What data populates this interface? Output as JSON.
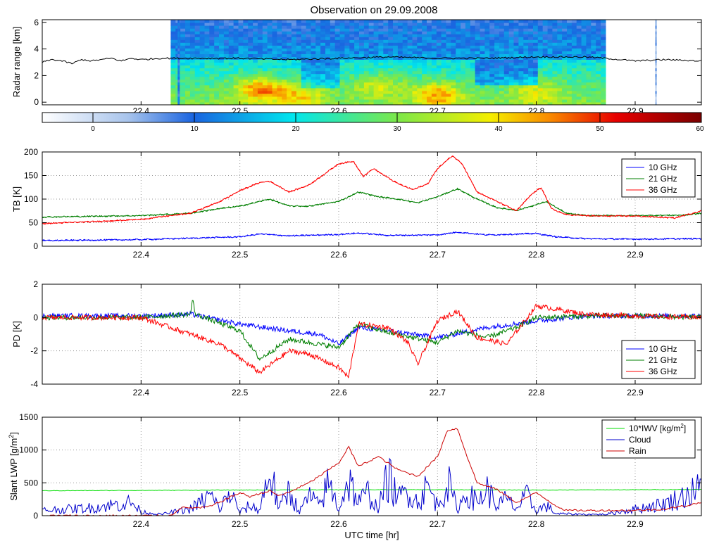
{
  "title": "Observation on 29.09.2008",
  "xlabel": "UTC time [hr]",
  "chart_data": [
    {
      "type": "heatmap",
      "name": "radar",
      "ylabel": "Radar range [km]",
      "xlim": [
        22.3,
        22.967
      ],
      "ylim": [
        -0.2,
        6.2
      ],
      "xticks": [
        22.4,
        22.5,
        22.6,
        22.7,
        22.8,
        22.9
      ],
      "yticks": [
        0,
        2,
        4,
        6
      ],
      "data_x_range": [
        22.43,
        22.87
      ],
      "stray_columns_x": [
        22.437,
        22.92
      ],
      "cloud_base_km": 3.3,
      "colorbar": {
        "min": -5,
        "max": 60,
        "ticks": [
          0,
          10,
          20,
          30,
          40,
          50,
          60
        ]
      },
      "cloud_base_line": {
        "x": [
          22.3,
          22.31,
          22.32,
          22.33,
          22.34,
          22.35,
          22.36,
          22.37,
          22.38,
          22.39,
          22.4,
          22.42,
          22.45,
          22.5,
          22.55,
          22.6,
          22.65,
          22.7,
          22.75,
          22.8,
          22.85,
          22.87,
          22.9,
          22.93,
          22.967
        ],
        "y": [
          3.0,
          3.2,
          3.1,
          2.9,
          3.2,
          3.1,
          3.2,
          3.3,
          3.1,
          3.3,
          3.2,
          3.3,
          3.3,
          3.3,
          3.2,
          3.3,
          3.4,
          3.3,
          3.3,
          3.4,
          3.4,
          3.3,
          3.1,
          3.2,
          3.1
        ]
      }
    },
    {
      "type": "line",
      "name": "tb",
      "ylabel": "TB [K]",
      "xlim": [
        22.3,
        22.967
      ],
      "ylim": [
        0,
        200
      ],
      "xticks": [
        22.4,
        22.5,
        22.6,
        22.7,
        22.8,
        22.9
      ],
      "yticks": [
        0,
        50,
        100,
        150,
        200
      ],
      "grid": true,
      "legend": "top-right",
      "series": [
        {
          "name": "10 GHz",
          "color": "#0000ff",
          "x": [
            22.3,
            22.4,
            22.45,
            22.5,
            22.52,
            22.55,
            22.6,
            22.62,
            22.65,
            22.7,
            22.72,
            22.75,
            22.8,
            22.82,
            22.85,
            22.9,
            22.967
          ],
          "y": [
            12,
            14,
            17,
            20,
            26,
            22,
            25,
            28,
            23,
            24,
            30,
            24,
            27,
            20,
            16,
            15,
            16
          ]
        },
        {
          "name": "21 GHz",
          "color": "#007f00",
          "x": [
            22.3,
            22.4,
            22.45,
            22.48,
            22.5,
            22.53,
            22.55,
            22.57,
            22.6,
            22.62,
            22.64,
            22.66,
            22.68,
            22.7,
            22.72,
            22.74,
            22.76,
            22.78,
            22.8,
            22.81,
            22.83,
            22.85,
            22.9,
            22.95,
            22.967
          ],
          "y": [
            62,
            65,
            70,
            80,
            85,
            100,
            85,
            85,
            95,
            115,
            105,
            100,
            92,
            105,
            122,
            100,
            82,
            76,
            88,
            95,
            70,
            65,
            65,
            66,
            70
          ]
        },
        {
          "name": "36 GHz",
          "color": "#ff0000",
          "x": [
            22.3,
            22.35,
            22.4,
            22.45,
            22.48,
            22.5,
            22.52,
            22.53,
            22.55,
            22.57,
            22.6,
            22.615,
            22.625,
            22.635,
            22.65,
            22.66,
            22.675,
            22.69,
            22.7,
            22.715,
            22.725,
            22.74,
            22.76,
            22.78,
            22.795,
            22.805,
            22.815,
            22.83,
            22.86,
            22.9,
            22.94,
            22.967
          ],
          "y": [
            48,
            52,
            57,
            70,
            95,
            118,
            135,
            138,
            115,
            130,
            175,
            180,
            148,
            165,
            145,
            133,
            120,
            132,
            165,
            192,
            175,
            115,
            95,
            75,
            110,
            125,
            80,
            67,
            64,
            64,
            60,
            75
          ]
        }
      ]
    },
    {
      "type": "line",
      "name": "pd",
      "ylabel": "PD [K]",
      "xlim": [
        22.3,
        22.967
      ],
      "ylim": [
        -4,
        2
      ],
      "xticks": [
        22.4,
        22.5,
        22.6,
        22.7,
        22.8,
        22.9
      ],
      "yticks": [
        -4,
        -2,
        0,
        2
      ],
      "grid": true,
      "legend": "bottom-right",
      "series": [
        {
          "name": "10 GHz",
          "color": "#0000ff",
          "x": [
            22.3,
            22.4,
            22.45,
            22.5,
            22.55,
            22.58,
            22.6,
            22.62,
            22.65,
            22.7,
            22.75,
            22.8,
            22.85,
            22.9,
            22.967
          ],
          "y": [
            0.1,
            0.1,
            0.2,
            -0.4,
            -0.8,
            -1.0,
            -1.6,
            -0.6,
            -0.8,
            -1.2,
            -0.6,
            -0.2,
            0.1,
            0.1,
            0.1
          ]
        },
        {
          "name": "21 GHz",
          "color": "#007f00",
          "x": [
            22.3,
            22.4,
            22.45,
            22.452,
            22.455,
            22.5,
            22.52,
            22.55,
            22.6,
            22.62,
            22.65,
            22.7,
            22.72,
            22.75,
            22.78,
            22.8,
            22.85,
            22.9,
            22.967
          ],
          "y": [
            0.0,
            0.0,
            0.2,
            1.1,
            0.2,
            -0.8,
            -2.5,
            -1.3,
            -1.8,
            -0.4,
            -0.9,
            -1.5,
            -0.8,
            -1.2,
            -0.6,
            0.0,
            0.1,
            0.1,
            0.0
          ]
        },
        {
          "name": "36 GHz",
          "color": "#ff0000",
          "x": [
            22.3,
            22.4,
            22.43,
            22.48,
            22.52,
            22.55,
            22.57,
            22.6,
            22.61,
            22.62,
            22.65,
            22.67,
            22.68,
            22.7,
            22.72,
            22.74,
            22.77,
            22.8,
            22.82,
            22.85,
            22.9,
            22.967
          ],
          "y": [
            0.0,
            0.0,
            -0.6,
            -1.6,
            -3.3,
            -2.0,
            -2.2,
            -3.0,
            -3.6,
            -0.4,
            -0.6,
            -1.5,
            -2.8,
            -0.2,
            0.4,
            -1.2,
            -1.6,
            0.7,
            0.5,
            0.2,
            0.1,
            0.0
          ]
        }
      ]
    },
    {
      "type": "line",
      "name": "lwp",
      "ylabel": "Slant LWP [g/m",
      "ylabel_sup": "2",
      "ylabel_end": "]",
      "xlim": [
        22.3,
        22.967
      ],
      "ylim": [
        0,
        1500
      ],
      "xticks": [
        22.4,
        22.5,
        22.6,
        22.7,
        22.8,
        22.9
      ],
      "yticks": [
        0,
        500,
        1000,
        1500
      ],
      "grid": true,
      "legend": "top-right",
      "series": [
        {
          "name": "10*IWV [kg/m",
          "name_sup": "2",
          "name_end": "]",
          "color": "#00dd00",
          "x": [
            22.3,
            22.4,
            22.5,
            22.6,
            22.7,
            22.8,
            22.9,
            22.967
          ],
          "y": [
            380,
            385,
            390,
            395,
            395,
            390,
            395,
            400
          ]
        },
        {
          "name": "Cloud",
          "color": "#0000cc",
          "x": [
            22.3,
            22.35,
            22.39,
            22.4,
            22.42,
            22.45,
            22.47,
            22.48,
            22.49,
            22.5,
            22.51,
            22.52,
            22.53,
            22.54,
            22.55,
            22.56,
            22.57,
            22.58,
            22.59,
            22.6,
            22.61,
            22.62,
            22.63,
            22.64,
            22.65,
            22.66,
            22.67,
            22.68,
            22.69,
            22.7,
            22.71,
            22.72,
            22.73,
            22.74,
            22.75,
            22.76,
            22.77,
            22.78,
            22.79,
            22.8,
            22.81,
            22.82,
            22.85,
            22.87,
            22.9,
            22.93,
            22.95,
            22.967
          ],
          "y": [
            80,
            120,
            200,
            60,
            20,
            100,
            300,
            100,
            350,
            50,
            150,
            80,
            700,
            100,
            400,
            50,
            300,
            150,
            500,
            100,
            550,
            200,
            350,
            100,
            600,
            250,
            400,
            200,
            450,
            150,
            520,
            100,
            350,
            200,
            400,
            150,
            250,
            100,
            300,
            80,
            150,
            30,
            20,
            20,
            100,
            180,
            300,
            420
          ]
        },
        {
          "name": "Rain",
          "color": "#cc0000",
          "x": [
            22.3,
            22.43,
            22.44,
            22.46,
            22.47,
            22.5,
            22.51,
            22.53,
            22.54,
            22.55,
            22.57,
            22.58,
            22.6,
            22.61,
            22.62,
            22.64,
            22.66,
            22.68,
            22.7,
            22.71,
            22.72,
            22.73,
            22.74,
            22.76,
            22.78,
            22.8,
            22.82,
            22.83,
            22.86,
            22.9,
            22.93,
            22.95,
            22.967
          ],
          "y": [
            0,
            0,
            120,
            120,
            140,
            350,
            290,
            380,
            300,
            360,
            500,
            600,
            800,
            1050,
            750,
            900,
            700,
            600,
            900,
            1300,
            1330,
            900,
            500,
            400,
            200,
            350,
            150,
            80,
            80,
            80,
            100,
            150,
            200
          ]
        }
      ]
    }
  ]
}
